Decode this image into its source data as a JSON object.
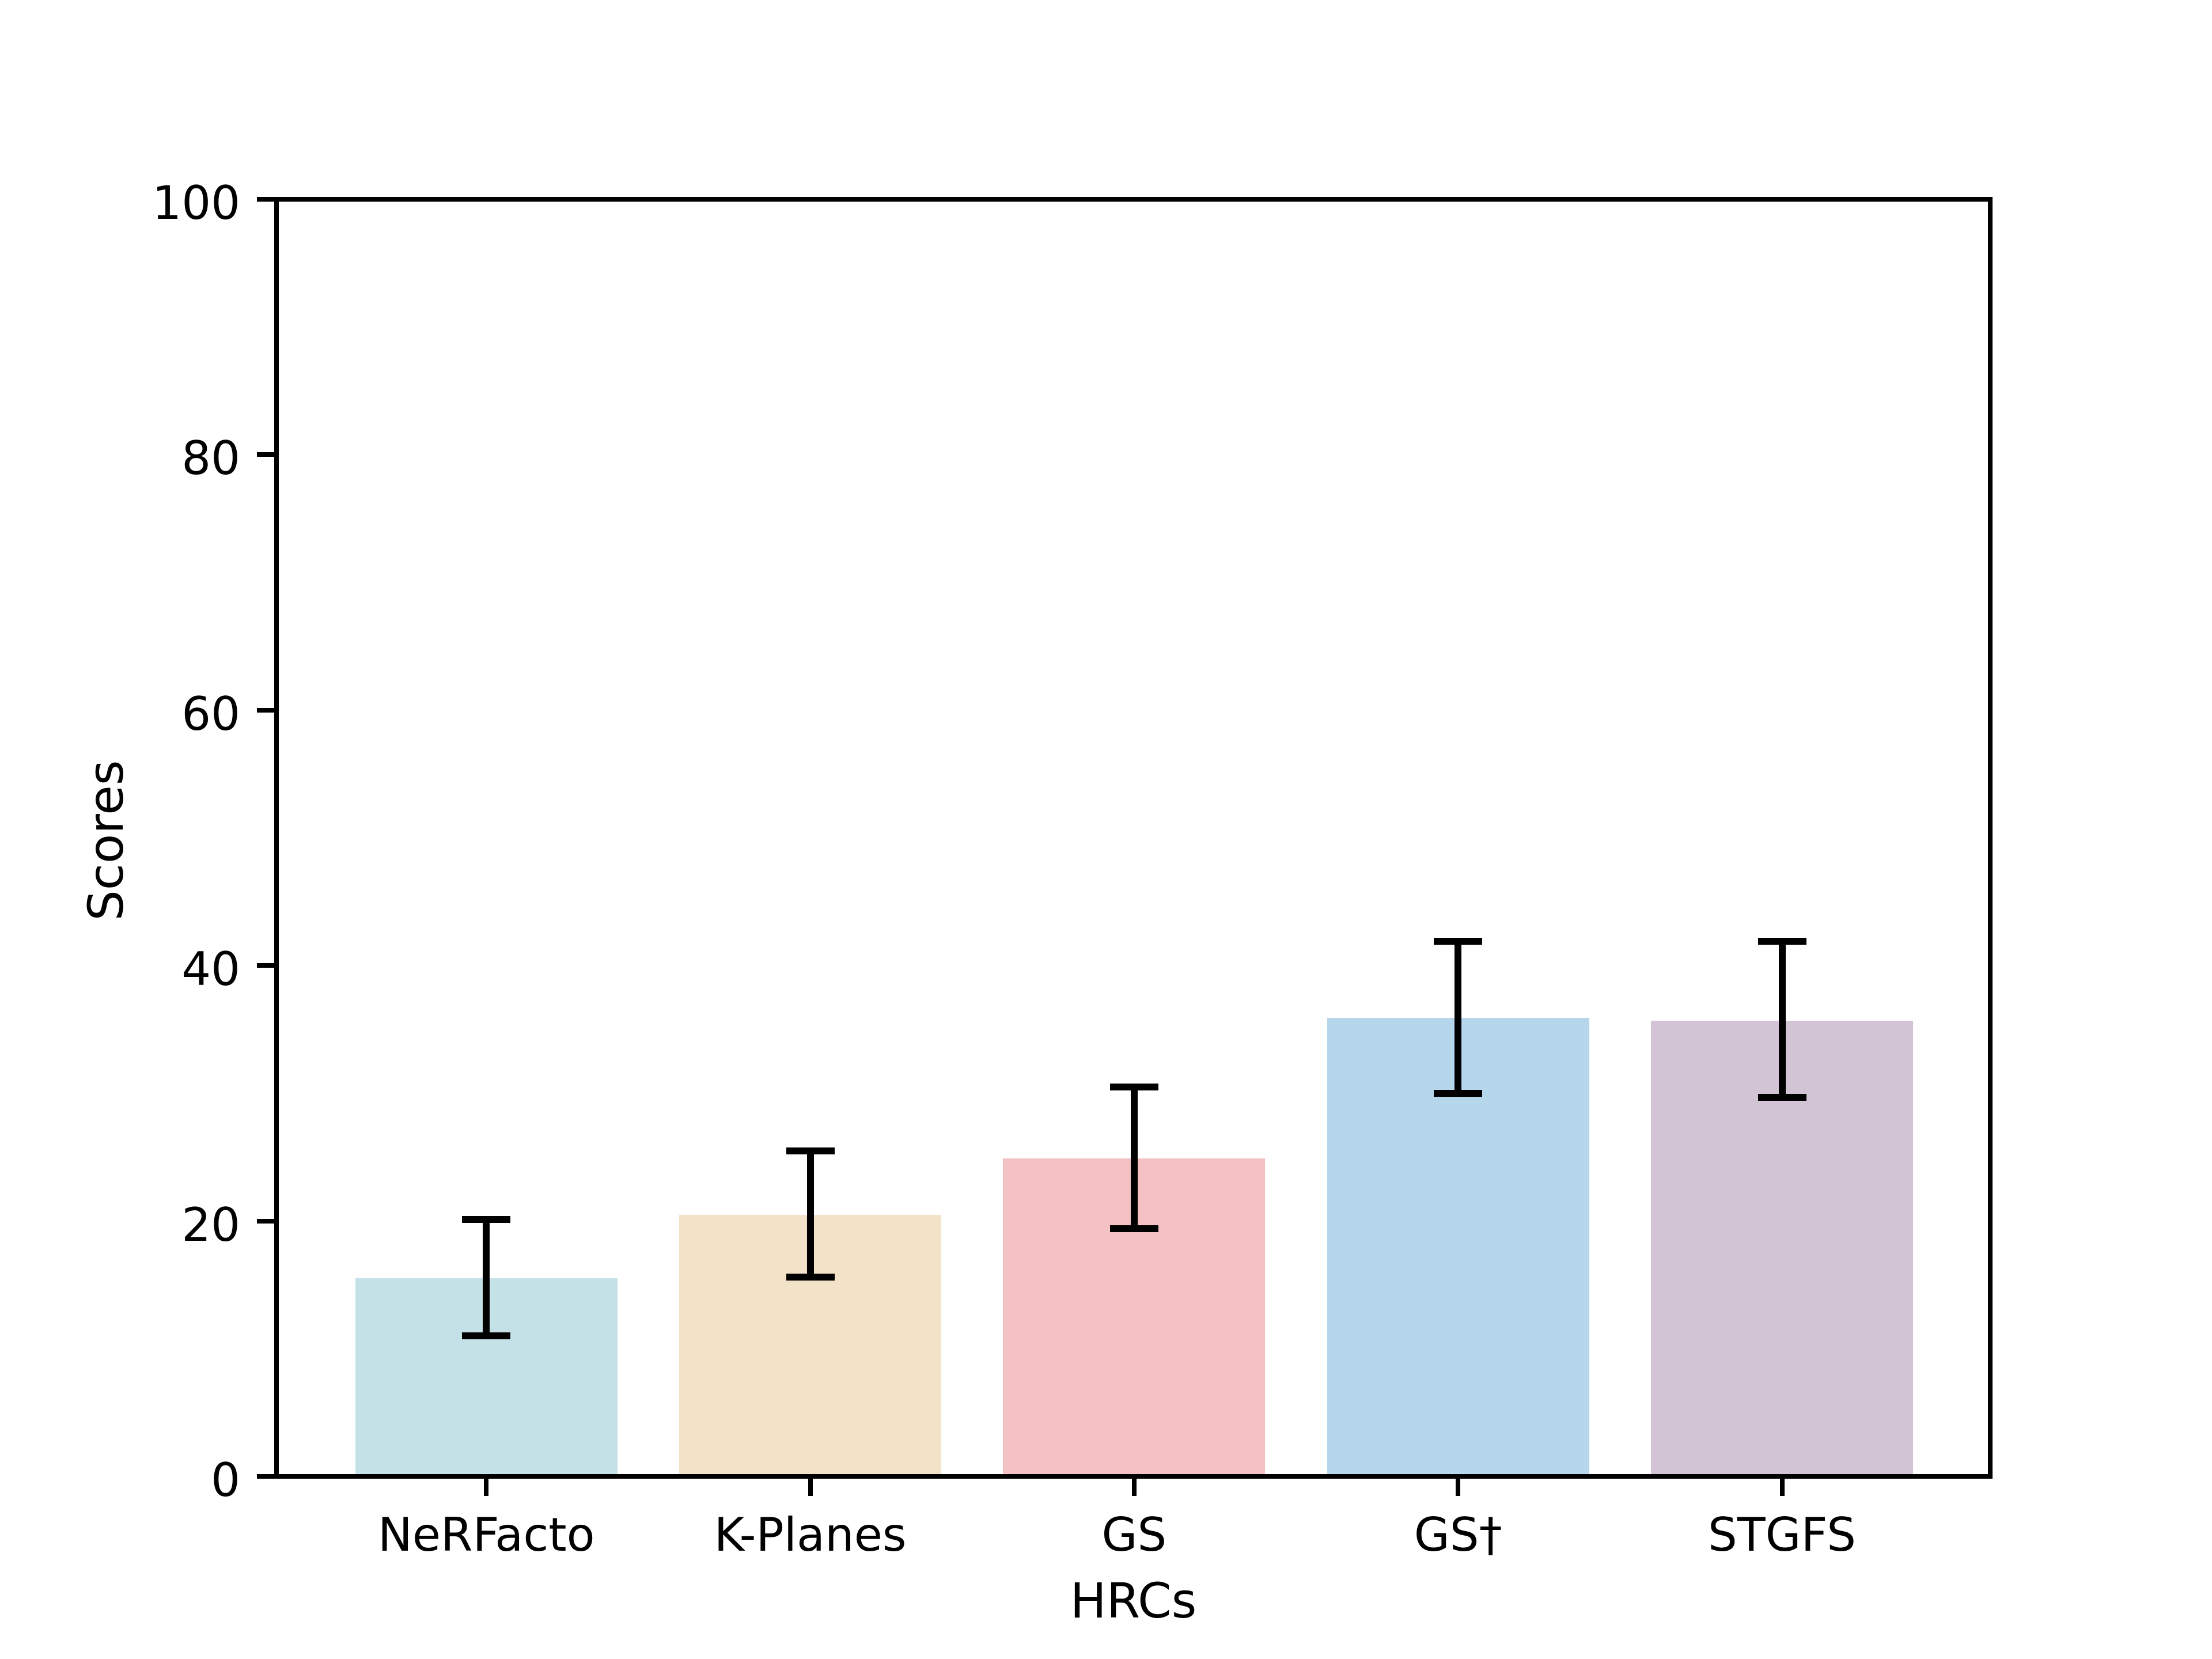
{
  "chart_data": {
    "type": "bar",
    "title": "",
    "xlabel": "HRCs",
    "ylabel": "Scores",
    "categories": [
      "NeRFacto",
      "K-Planes",
      "GS",
      "GS†",
      "STGFS"
    ],
    "values": [
      15.5,
      20.5,
      24.9,
      35.9,
      35.7
    ],
    "error_low": [
      11.0,
      15.6,
      19.4,
      30.0,
      29.7
    ],
    "error_high": [
      20.1,
      25.5,
      30.5,
      41.9,
      41.9
    ],
    "bar_colors": [
      "#c4e1e7",
      "#f2e2c7",
      "#f4c2c4",
      "#b6d7eb",
      "#d3c4d5"
    ],
    "error_color": "#000000",
    "axis_color": "#000000",
    "background_color": "#ffffff",
    "ylim": [
      0,
      100
    ],
    "yticks": [
      0,
      20,
      40,
      60,
      80,
      100
    ],
    "grid": false,
    "legend": null
  }
}
